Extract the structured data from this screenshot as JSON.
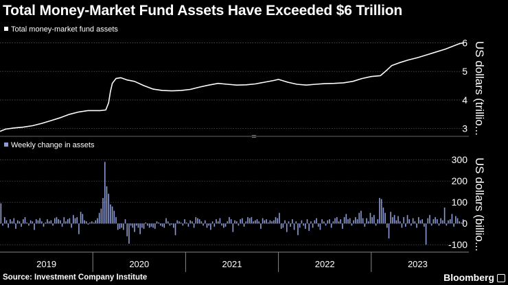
{
  "title": "Total Money-Market Fund Assets Have Exceeded $6 Trillion",
  "footer": {
    "source": "Source: Investment Company Institute",
    "brand": "Bloomberg"
  },
  "colors": {
    "background": "#000000",
    "line": "#ffffff",
    "bars": "#8c9bd6",
    "grid": "#555555"
  },
  "chart_data": [
    {
      "type": "line",
      "legend": "Total money-market fund assets",
      "ylabel": "US dollars (trillio...",
      "ylim": [
        2.8,
        6.25
      ],
      "yticks": [
        3,
        4,
        5,
        6
      ],
      "xlim": [
        2019.0,
        2024.0
      ],
      "x_ticks": [
        "2019",
        "2020",
        "2021",
        "2022",
        "2023"
      ],
      "grid": true,
      "legend_position": "top-left",
      "points": [
        [
          2019.0,
          2.9
        ],
        [
          2019.06,
          2.98
        ],
        [
          2019.15,
          3.02
        ],
        [
          2019.25,
          3.05
        ],
        [
          2019.35,
          3.1
        ],
        [
          2019.45,
          3.18
        ],
        [
          2019.55,
          3.28
        ],
        [
          2019.65,
          3.38
        ],
        [
          2019.75,
          3.5
        ],
        [
          2019.85,
          3.58
        ],
        [
          2019.95,
          3.63
        ],
        [
          2020.08,
          3.63
        ],
        [
          2020.14,
          3.65
        ],
        [
          2020.17,
          3.9
        ],
        [
          2020.19,
          4.3
        ],
        [
          2020.21,
          4.58
        ],
        [
          2020.25,
          4.75
        ],
        [
          2020.3,
          4.78
        ],
        [
          2020.37,
          4.7
        ],
        [
          2020.45,
          4.65
        ],
        [
          2020.55,
          4.5
        ],
        [
          2020.65,
          4.38
        ],
        [
          2020.75,
          4.33
        ],
        [
          2020.85,
          4.32
        ],
        [
          2020.95,
          4.33
        ],
        [
          2021.05,
          4.37
        ],
        [
          2021.15,
          4.45
        ],
        [
          2021.25,
          4.52
        ],
        [
          2021.35,
          4.58
        ],
        [
          2021.45,
          4.55
        ],
        [
          2021.55,
          4.52
        ],
        [
          2021.65,
          4.53
        ],
        [
          2021.75,
          4.56
        ],
        [
          2021.85,
          4.62
        ],
        [
          2021.95,
          4.68
        ],
        [
          2022.0,
          4.72
        ],
        [
          2022.1,
          4.62
        ],
        [
          2022.2,
          4.55
        ],
        [
          2022.3,
          4.52
        ],
        [
          2022.4,
          4.55
        ],
        [
          2022.5,
          4.57
        ],
        [
          2022.6,
          4.58
        ],
        [
          2022.7,
          4.6
        ],
        [
          2022.8,
          4.65
        ],
        [
          2022.9,
          4.75
        ],
        [
          2023.0,
          4.82
        ],
        [
          2023.1,
          4.85
        ],
        [
          2023.17,
          5.05
        ],
        [
          2023.22,
          5.2
        ],
        [
          2023.3,
          5.3
        ],
        [
          2023.4,
          5.4
        ],
        [
          2023.5,
          5.48
        ],
        [
          2023.6,
          5.58
        ],
        [
          2023.7,
          5.68
        ],
        [
          2023.8,
          5.78
        ],
        [
          2023.88,
          5.88
        ],
        [
          2023.95,
          5.97
        ],
        [
          2024.0,
          6.0
        ]
      ]
    },
    {
      "type": "bar",
      "legend": "Weekly change in assets",
      "ylabel": "US dollars (billio...",
      "ylim": [
        -125,
        320
      ],
      "yticks": [
        -100,
        0,
        100,
        200,
        300
      ],
      "xlim": [
        2019.0,
        2024.0
      ],
      "x_ticks": [
        "2019",
        "2020",
        "2021",
        "2022",
        "2023"
      ],
      "grid": true,
      "legend_position": "top-left",
      "values": [
        95,
        -10,
        30,
        15,
        -20,
        20,
        10,
        25,
        -25,
        15,
        10,
        -15,
        20,
        30,
        5,
        -10,
        15,
        10,
        -30,
        20,
        15,
        25,
        10,
        -15,
        5,
        20,
        10,
        15,
        -10,
        25,
        30,
        20,
        15,
        -15,
        30,
        10,
        20,
        25,
        -20,
        40,
        25,
        30,
        -50,
        55,
        45,
        15,
        10,
        -5,
        5,
        10,
        5,
        15,
        25,
        50,
        70,
        120,
        290,
        175,
        140,
        90,
        80,
        60,
        30,
        -30,
        -25,
        -20,
        -30,
        20,
        -60,
        -95,
        -10,
        -20,
        -40,
        -10,
        -20,
        -50,
        -20,
        -25,
        5,
        -10,
        -20,
        -15,
        -20,
        -25,
        10,
        5,
        -10,
        -15,
        -20,
        25,
        10,
        -10,
        -5,
        -20,
        -55,
        15,
        10,
        5,
        -10,
        20,
        5,
        -15,
        15,
        10,
        -20,
        30,
        25,
        20,
        10,
        -10,
        15,
        -20,
        -10,
        -30,
        10,
        -15,
        20,
        10,
        25,
        -10,
        -20,
        -15,
        10,
        30,
        20,
        -40,
        15,
        10,
        -10,
        20,
        25,
        -15,
        10,
        30,
        25,
        30,
        10,
        15,
        20,
        10,
        -25,
        25,
        15,
        20,
        5,
        15,
        10,
        15,
        30,
        25,
        50,
        -25,
        -20,
        15,
        -40,
        10,
        -15,
        20,
        -30,
        10,
        -55,
        -20,
        15,
        -10,
        -25,
        20,
        -35,
        10,
        -20,
        15,
        25,
        -15,
        -30,
        20,
        10,
        -10,
        15,
        20,
        -20,
        10,
        25,
        30,
        10,
        20,
        -25,
        30,
        45,
        20,
        25,
        -10,
        15,
        30,
        20,
        50,
        60,
        25,
        -15,
        25,
        10,
        50,
        30,
        40,
        -10,
        20,
        120,
        115,
        75,
        50,
        -20,
        -70,
        55,
        30,
        40,
        15,
        35,
        10,
        -20,
        30,
        -15,
        40,
        20,
        -10,
        25,
        10,
        -20,
        30,
        15,
        20,
        -15,
        -100,
        25,
        40,
        -10,
        20,
        30,
        20,
        -10,
        25,
        15,
        75,
        -10,
        15,
        20,
        45,
        -15,
        35,
        25,
        10,
        5,
        20
      ]
    }
  ]
}
